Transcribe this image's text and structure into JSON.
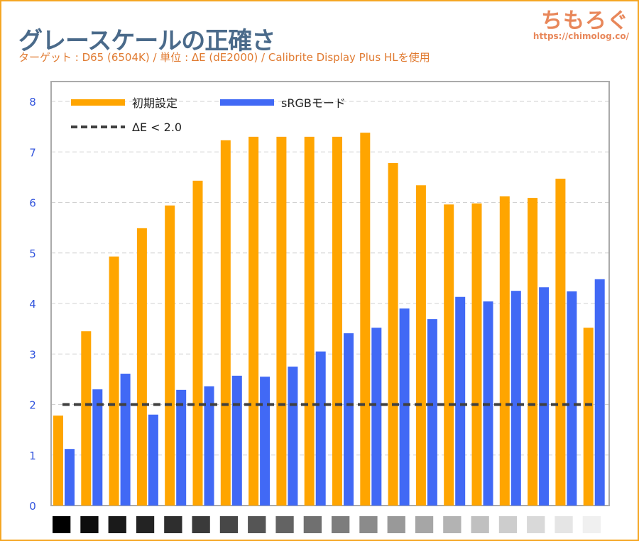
{
  "header": {
    "title": "グレースケールの正確さ",
    "subtitle": "ターゲット : D65 (6504K) / 単位 : ΔE (dE2000) / Calibrite Display Plus HLを使用",
    "logo_text": "ちもろぐ",
    "logo_url": "https://chimolog.co/"
  },
  "chart_data": {
    "type": "bar",
    "title": "グレースケールの正確さ",
    "ylim": [
      0,
      8.4
    ],
    "yticks": [
      0,
      1,
      2,
      3,
      4,
      5,
      6,
      7,
      8
    ],
    "grid": true,
    "legend_position": "top-left",
    "categories_as_swatches": [
      "#000000",
      "#0d0d0d",
      "#1a1a1a",
      "#232323",
      "#2e2e2e",
      "#3a3a3a",
      "#474747",
      "#555555",
      "#636363",
      "#707070",
      "#7d7d7d",
      "#8b8b8b",
      "#999999",
      "#a6a6a6",
      "#b3b3b3",
      "#c0c0c0",
      "#cdcdcd",
      "#d9d9d9",
      "#e5e5e5",
      "#f0f0f0"
    ],
    "series": [
      {
        "name": "初期設定",
        "color": "#ffa500",
        "values": [
          1.78,
          3.45,
          4.93,
          5.49,
          5.94,
          6.43,
          7.23,
          7.3,
          7.3,
          7.3,
          7.3,
          7.38,
          6.78,
          6.34,
          5.96,
          5.98,
          6.12,
          6.09,
          6.47,
          3.52
        ]
      },
      {
        "name": "sRGBモード",
        "color": "#4169f5",
        "values": [
          1.12,
          2.3,
          2.61,
          1.8,
          2.29,
          2.36,
          2.57,
          2.55,
          2.75,
          3.05,
          3.41,
          3.52,
          3.9,
          3.69,
          4.13,
          4.04,
          4.25,
          4.32,
          4.24,
          4.48
        ]
      }
    ],
    "reference_line": {
      "name": "ΔE < 2.0",
      "value": 2.0,
      "color": "#404040",
      "style": "dashed"
    }
  }
}
